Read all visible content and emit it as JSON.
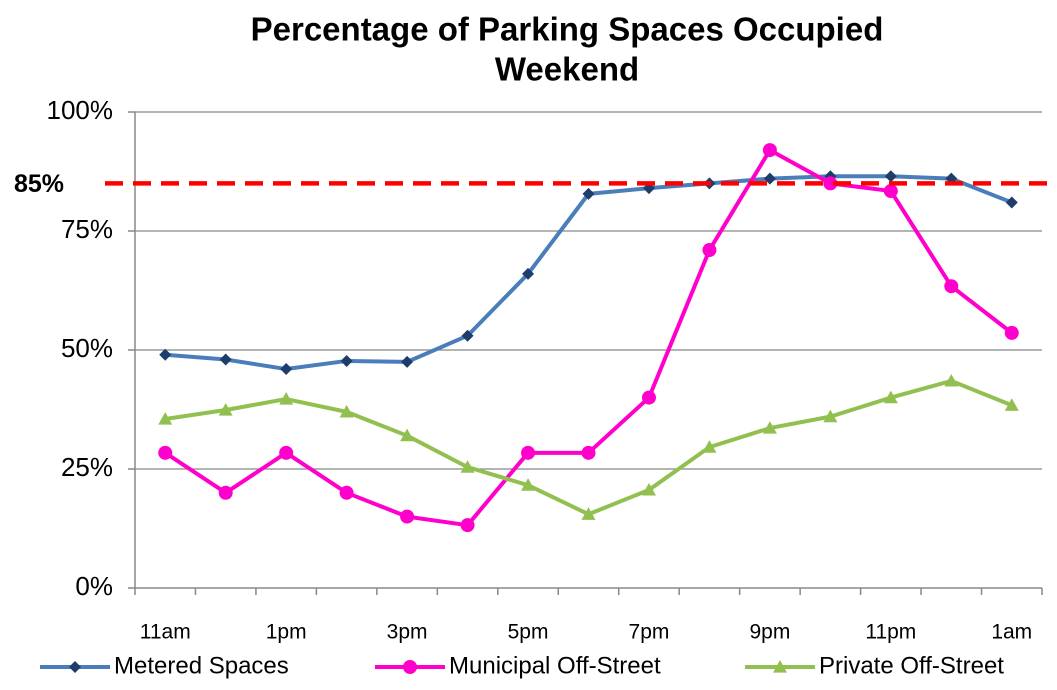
{
  "chart_data": {
    "type": "line",
    "title": "Percentage of Parking Spaces Occupied",
    "subtitle": "Weekend",
    "categories": [
      "11am",
      null,
      "1pm",
      null,
      "3pm",
      null,
      "5pm",
      null,
      "7pm",
      null,
      "9pm",
      null,
      "11pm",
      null,
      "1am"
    ],
    "series": [
      {
        "name": "Metered Spaces",
        "color": "#4a7ebb",
        "marker_color": "#1f3d6b",
        "marker": "diamond",
        "values": [
          49,
          48,
          46,
          47.7,
          47.5,
          53,
          66,
          82.8,
          84,
          85,
          86,
          86.5,
          86.5,
          86,
          81
        ]
      },
      {
        "name": "Municipal Off-Street",
        "color": "#ff00cc",
        "marker_color": "#ff00cc",
        "marker": "circle",
        "values": [
          28.4,
          20,
          28.4,
          20,
          15,
          13.2,
          28.4,
          28.4,
          40,
          71,
          92,
          85,
          83.4,
          63.4,
          53.6
        ]
      },
      {
        "name": "Private Off-Street",
        "color": "#92c050",
        "marker_color": "#92c050",
        "marker": "triangle",
        "values": [
          35.5,
          37.4,
          39.7,
          37,
          32,
          25.4,
          21.6,
          15.5,
          20.6,
          29.6,
          33.6,
          36,
          40,
          43.5,
          38.4
        ]
      }
    ],
    "ylim": [
      0,
      100
    ],
    "yticks": [
      {
        "value": 0,
        "label": "0%"
      },
      {
        "value": 25,
        "label": "25%"
      },
      {
        "value": 50,
        "label": "50%"
      },
      {
        "value": 75,
        "label": "75%"
      },
      {
        "value": 100,
        "label": "100%"
      }
    ],
    "grid": true,
    "reference_line": {
      "value": 85,
      "label": "85%",
      "color": "#ff0000"
    },
    "legend": "bottom"
  }
}
